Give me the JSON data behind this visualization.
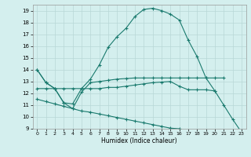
{
  "xlabel": "Humidex (Indice chaleur)",
  "x": [
    0,
    1,
    2,
    3,
    4,
    5,
    6,
    7,
    8,
    9,
    10,
    11,
    12,
    13,
    14,
    15,
    16,
    17,
    18,
    19,
    20,
    21,
    22,
    23
  ],
  "line_main": [
    14.0,
    12.9,
    12.4,
    11.2,
    11.1,
    12.4,
    13.2,
    14.4,
    15.9,
    16.8,
    17.5,
    18.5,
    19.1,
    19.2,
    19.0,
    18.7,
    18.2,
    16.5,
    15.1,
    13.3,
    12.2,
    11.0,
    9.8,
    8.7
  ],
  "line_flat1": [
    14.0,
    12.9,
    12.4,
    11.2,
    10.7,
    12.1,
    12.9,
    13.0,
    13.1,
    13.2,
    13.25,
    13.3,
    13.3,
    13.3,
    13.3,
    13.3,
    13.3,
    13.3,
    13.3,
    13.3,
    13.3,
    13.3,
    null,
    null
  ],
  "line_flat2": [
    12.4,
    12.4,
    12.4,
    12.4,
    12.4,
    12.4,
    12.4,
    12.4,
    12.5,
    12.5,
    12.6,
    12.7,
    12.8,
    12.9,
    12.95,
    13.0,
    12.6,
    12.3,
    12.3,
    12.3,
    12.2,
    null,
    null,
    null
  ],
  "line_diag": [
    11.5,
    11.3,
    11.1,
    10.9,
    10.7,
    10.5,
    10.4,
    10.25,
    10.1,
    9.95,
    9.8,
    9.65,
    9.5,
    9.35,
    9.2,
    9.05,
    9.0,
    null,
    null,
    null,
    null,
    null,
    null,
    null
  ],
  "color": "#1a7a6e",
  "background": "#d4efee",
  "grid_color": "#b8d8d6",
  "ylim": [
    9,
    19.5
  ],
  "xlim": [
    -0.5,
    23.5
  ],
  "yticks": [
    9,
    10,
    11,
    12,
    13,
    14,
    15,
    16,
    17,
    18,
    19
  ],
  "xticks": [
    0,
    1,
    2,
    3,
    4,
    5,
    6,
    7,
    8,
    9,
    10,
    11,
    12,
    13,
    14,
    15,
    16,
    17,
    18,
    19,
    20,
    21,
    22,
    23
  ]
}
